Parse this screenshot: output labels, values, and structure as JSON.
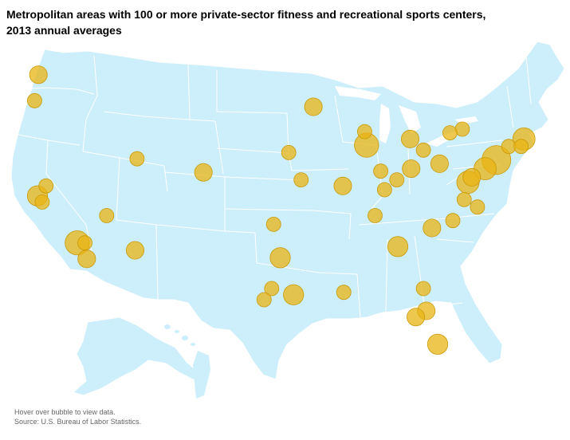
{
  "title_line1": "Metropolitan areas with 100 or more private-sector fitness and recreational sports centers,",
  "title_line2": "2013 annual averages",
  "footnote_hover": "Hover over bubble to view data.",
  "footnote_source": "Source: U.S. Bureau of Labor Statistics.",
  "colors": {
    "land": "#cdeefb",
    "state_border": "#ffffff",
    "bubble_fill": "#e8b414",
    "bubble_stroke": "#c99a08"
  },
  "map_data": {
    "type": "bubble-map",
    "region": "United States (contiguous, plus Alaska and Hawaii insets)",
    "bubbles": [
      {
        "id": "seattle",
        "lon": -122.3,
        "lat": 47.6,
        "size": 2
      },
      {
        "id": "portland",
        "lon": -122.7,
        "lat": 45.5,
        "size": 1
      },
      {
        "id": "sacramento",
        "lon": -121.5,
        "lat": 38.6,
        "size": 1
      },
      {
        "id": "san-francisco",
        "lon": -122.4,
        "lat": 37.8,
        "size": 3
      },
      {
        "id": "san-jose",
        "lon": -121.9,
        "lat": 37.3,
        "size": 1
      },
      {
        "id": "los-angeles",
        "lon": -118.2,
        "lat": 34.0,
        "size": 5
      },
      {
        "id": "riverside",
        "lon": -117.4,
        "lat": 34.0,
        "size": 1
      },
      {
        "id": "san-diego",
        "lon": -117.2,
        "lat": 32.7,
        "size": 2
      },
      {
        "id": "las-vegas",
        "lon": -115.1,
        "lat": 36.2,
        "size": 1
      },
      {
        "id": "phoenix",
        "lon": -112.1,
        "lat": 33.4,
        "size": 2
      },
      {
        "id": "salt-lake-city",
        "lon": -111.9,
        "lat": 40.8,
        "size": 1
      },
      {
        "id": "denver",
        "lon": -104.9,
        "lat": 39.7,
        "size": 2
      },
      {
        "id": "minneapolis",
        "lon": -93.3,
        "lat": 45.0,
        "size": 2
      },
      {
        "id": "omaha",
        "lon": -95.9,
        "lat": 41.3,
        "size": 1
      },
      {
        "id": "kansas-city",
        "lon": -94.6,
        "lat": 39.1,
        "size": 1
      },
      {
        "id": "st-louis",
        "lon": -90.2,
        "lat": 38.6,
        "size": 2
      },
      {
        "id": "oklahoma-city",
        "lon": -97.5,
        "lat": 35.5,
        "size": 1
      },
      {
        "id": "dallas",
        "lon": -96.8,
        "lat": 32.8,
        "size": 3
      },
      {
        "id": "austin",
        "lon": -97.7,
        "lat": 30.3,
        "size": 1
      },
      {
        "id": "san-antonio",
        "lon": -98.5,
        "lat": 29.4,
        "size": 1
      },
      {
        "id": "houston",
        "lon": -95.4,
        "lat": 29.8,
        "size": 3
      },
      {
        "id": "new-orleans",
        "lon": -90.1,
        "lat": 30.0,
        "size": 1
      },
      {
        "id": "milwaukee",
        "lon": -87.9,
        "lat": 43.0,
        "size": 1
      },
      {
        "id": "chicago",
        "lon": -87.7,
        "lat": 41.9,
        "size": 5
      },
      {
        "id": "indianapolis",
        "lon": -86.2,
        "lat": 39.8,
        "size": 1
      },
      {
        "id": "louisville",
        "lon": -85.8,
        "lat": 38.3,
        "size": 1
      },
      {
        "id": "cincinnati",
        "lon": -84.5,
        "lat": 39.1,
        "size": 1
      },
      {
        "id": "columbus",
        "lon": -83.0,
        "lat": 40.0,
        "size": 2
      },
      {
        "id": "detroit",
        "lon": -83.1,
        "lat": 42.4,
        "size": 2
      },
      {
        "id": "cleveland",
        "lon": -81.7,
        "lat": 41.5,
        "size": 1
      },
      {
        "id": "pittsburgh",
        "lon": -80.0,
        "lat": 40.4,
        "size": 2
      },
      {
        "id": "nashville",
        "lon": -86.8,
        "lat": 36.2,
        "size": 1
      },
      {
        "id": "atlanta",
        "lon": -84.4,
        "lat": 33.7,
        "size": 3
      },
      {
        "id": "charlotte",
        "lon": -80.8,
        "lat": 35.2,
        "size": 2
      },
      {
        "id": "raleigh",
        "lon": -78.6,
        "lat": 35.8,
        "size": 1
      },
      {
        "id": "richmond",
        "lon": -77.4,
        "lat": 37.5,
        "size": 1
      },
      {
        "id": "virginia-beach",
        "lon": -76.0,
        "lat": 36.9,
        "size": 1
      },
      {
        "id": "washington",
        "lon": -77.0,
        "lat": 38.9,
        "size": 4
      },
      {
        "id": "baltimore",
        "lon": -76.6,
        "lat": 39.3,
        "size": 2
      },
      {
        "id": "philadelphia",
        "lon": -75.2,
        "lat": 40.0,
        "size": 4
      },
      {
        "id": "new-york",
        "lon": -74.0,
        "lat": 40.7,
        "size": 8
      },
      {
        "id": "hartford",
        "lon": -72.7,
        "lat": 41.8,
        "size": 1
      },
      {
        "id": "providence",
        "lon": -71.4,
        "lat": 41.8,
        "size": 1
      },
      {
        "id": "boston",
        "lon": -71.1,
        "lat": 42.4,
        "size": 4
      },
      {
        "id": "rochester",
        "lon": -77.6,
        "lat": 43.2,
        "size": 1
      },
      {
        "id": "buffalo",
        "lon": -78.9,
        "lat": 42.9,
        "size": 1
      },
      {
        "id": "jacksonville",
        "lon": -81.7,
        "lat": 30.3,
        "size": 1
      },
      {
        "id": "orlando",
        "lon": -81.4,
        "lat": 28.5,
        "size": 2
      },
      {
        "id": "tampa",
        "lon": -82.5,
        "lat": 28.0,
        "size": 2
      },
      {
        "id": "miami",
        "lon": -80.2,
        "lat": 25.8,
        "size": 3
      }
    ]
  }
}
